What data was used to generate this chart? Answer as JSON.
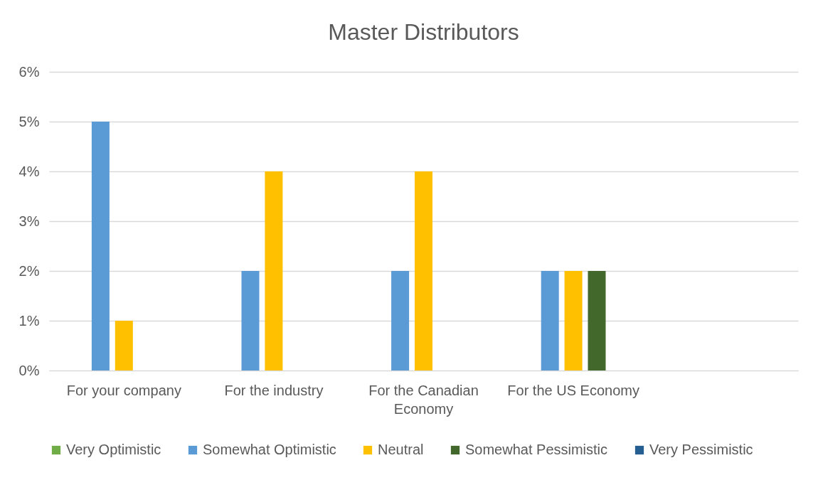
{
  "chart_data": {
    "type": "bar",
    "title": "Master Distributors",
    "categories": [
      "For your company",
      "For the industry",
      "For the Canadian Economy",
      "For the US Economy",
      null
    ],
    "series": [
      {
        "name": "Very Optimistic",
        "color": "#70ad47",
        "values": [
          null,
          null,
          null,
          null,
          null
        ]
      },
      {
        "name": "Somewhat Optimistic",
        "color": "#5b9bd5",
        "values": [
          5,
          2,
          2,
          2,
          null
        ]
      },
      {
        "name": "Neutral",
        "color": "#ffc000",
        "values": [
          1,
          4,
          4,
          2,
          null
        ]
      },
      {
        "name": "Somewhat Pessimistic",
        "color": "#43682b",
        "values": [
          null,
          null,
          null,
          2,
          null
        ]
      },
      {
        "name": "Very Pessimistic",
        "color": "#255e91",
        "values": [
          null,
          null,
          null,
          null,
          null
        ]
      }
    ],
    "ylim": [
      0,
      6
    ],
    "yticks": [
      {
        "value": 0,
        "label": "0%"
      },
      {
        "value": 1,
        "label": "1%"
      },
      {
        "value": 2,
        "label": "2%"
      },
      {
        "value": 3,
        "label": "3%"
      },
      {
        "value": 4,
        "label": "4%"
      },
      {
        "value": 5,
        "label": "5%"
      },
      {
        "value": 6,
        "label": "6%"
      }
    ],
    "grid": "y",
    "legend": "bottom"
  }
}
